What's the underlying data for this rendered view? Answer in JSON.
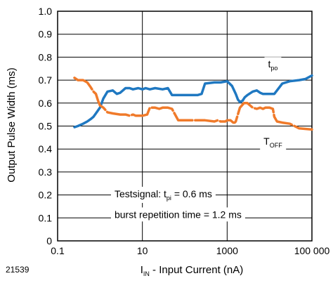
{
  "figure_id": "21539",
  "chart_data": {
    "type": "line",
    "ylabel": "Output Pulse Width (ms)",
    "xlabel": {
      "main": "I",
      "sub": "IN",
      "rest": " - Input Current (nA)"
    },
    "xscale": "log",
    "xlim": [
      0.1,
      100000
    ],
    "ylim": [
      0,
      1.0
    ],
    "xticks": [
      {
        "value": 0.1,
        "label": "0.1"
      },
      {
        "value": 10,
        "label": "10"
      },
      {
        "value": 1000,
        "label": "1000"
      },
      {
        "value": 100000,
        "label": "100 000"
      }
    ],
    "yticks": [
      {
        "value": 0.0,
        "label": "0"
      },
      {
        "value": 0.1,
        "label": "0.1"
      },
      {
        "value": 0.2,
        "label": "0.2"
      },
      {
        "value": 0.3,
        "label": "0.3"
      },
      {
        "value": 0.4,
        "label": "0.4"
      },
      {
        "value": 0.5,
        "label": "0.5"
      },
      {
        "value": 0.6,
        "label": "0.6"
      },
      {
        "value": 0.7,
        "label": "0.7"
      },
      {
        "value": 0.8,
        "label": "0.8"
      },
      {
        "value": 0.9,
        "label": "0.9"
      },
      {
        "value": 1.0,
        "label": "1.0"
      }
    ],
    "grid": true,
    "series": [
      {
        "key": "tpo",
        "color": "#1f78c1",
        "dashed": false,
        "label": {
          "main": "t",
          "sub": "po",
          "x": 12000,
          "y": 0.77
        },
        "x": [
          0.25,
          0.3,
          0.4,
          0.5,
          0.6,
          0.7,
          0.8,
          1.0,
          1.2,
          1.5,
          2,
          2.5,
          3,
          4,
          5,
          6,
          8,
          10,
          12,
          15,
          20,
          30,
          40,
          50,
          70,
          100,
          150,
          200,
          250,
          300,
          500,
          700,
          1000,
          1300,
          1600,
          1800,
          2000,
          2300,
          2600,
          3000,
          4000,
          5000,
          6000,
          7000,
          8000,
          10000,
          13000,
          20000,
          30000,
          50000,
          70000,
          100000
        ],
        "y": [
          0.495,
          0.5,
          0.51,
          0.52,
          0.53,
          0.54,
          0.555,
          0.58,
          0.62,
          0.65,
          0.655,
          0.64,
          0.645,
          0.665,
          0.665,
          0.66,
          0.665,
          0.66,
          0.665,
          0.66,
          0.665,
          0.66,
          0.665,
          0.635,
          0.635,
          0.635,
          0.635,
          0.635,
          0.64,
          0.685,
          0.69,
          0.69,
          0.695,
          0.675,
          0.64,
          0.615,
          0.605,
          0.61,
          0.625,
          0.635,
          0.65,
          0.655,
          0.645,
          0.64,
          0.64,
          0.64,
          0.64,
          0.685,
          0.695,
          0.7,
          0.705,
          0.72
        ]
      },
      {
        "key": "toff",
        "color": "#f07a2a",
        "dashed": true,
        "label": {
          "main": "T",
          "sub": "OFF",
          "x": 12000,
          "y": 0.435
        },
        "x": [
          0.25,
          0.3,
          0.4,
          0.5,
          0.6,
          0.7,
          0.8,
          0.9,
          1.0,
          1.2,
          1.5,
          2,
          3,
          4,
          5,
          6,
          7,
          8,
          10,
          13,
          15,
          20,
          25,
          30,
          40,
          50,
          70,
          100,
          150,
          200,
          300,
          500,
          600,
          700,
          900,
          1000,
          1200,
          1400,
          1500,
          1600,
          2000,
          2500,
          3000,
          4000,
          5000,
          6000,
          7000,
          8000,
          10000,
          12000,
          13000,
          15000,
          20000,
          30000,
          50000,
          100000
        ],
        "y": [
          0.71,
          0.7,
          0.7,
          0.69,
          0.67,
          0.65,
          0.64,
          0.61,
          0.59,
          0.58,
          0.56,
          0.555,
          0.55,
          0.55,
          0.545,
          0.55,
          0.545,
          0.545,
          0.545,
          0.55,
          0.58,
          0.58,
          0.575,
          0.58,
          0.58,
          0.575,
          0.525,
          0.525,
          0.525,
          0.525,
          0.525,
          0.52,
          0.525,
          0.52,
          0.52,
          0.525,
          0.525,
          0.515,
          0.515,
          0.52,
          0.58,
          0.6,
          0.6,
          0.58,
          0.575,
          0.58,
          0.575,
          0.58,
          0.58,
          0.575,
          0.54,
          0.52,
          0.515,
          0.51,
          0.49,
          0.485
        ]
      }
    ],
    "annotations": [
      {
        "main": "Testsignal: t",
        "sub": "pi",
        "rest": " = 0.6 ms",
        "x": 2.2,
        "y": 0.205
      },
      {
        "main": "burst repetition time = 1.2 ms",
        "sub": "",
        "rest": "",
        "x": 2.2,
        "y": 0.115
      }
    ]
  }
}
